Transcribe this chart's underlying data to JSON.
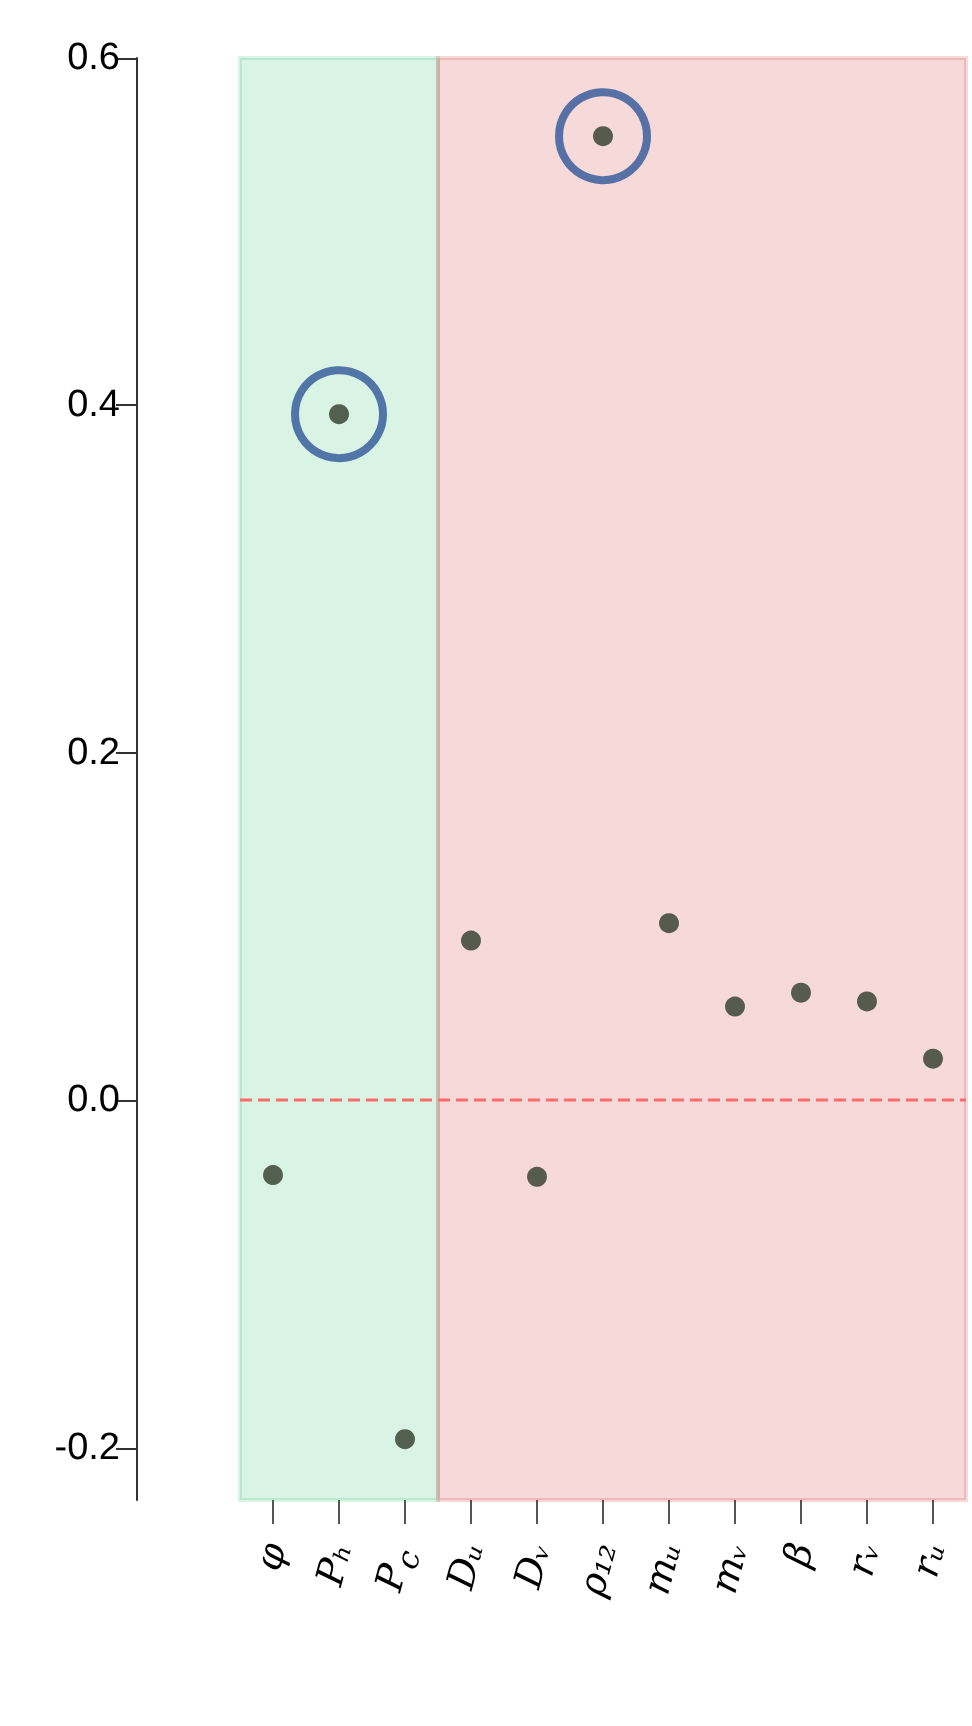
{
  "chart_data": {
    "type": "scatter",
    "categories": [
      "φ",
      "Pₕ",
      "P$_{c}$",
      "Dᵤ",
      "Dᵥ",
      "ρ₁₂",
      "mᵤ",
      "mᵥ",
      "β",
      "rᵥ",
      "rᵤ"
    ],
    "series": [
      {
        "color": "#2f3b2a",
        "marker": "circle",
        "values": [
          -0.043,
          0.395,
          -0.195,
          0.092,
          -0.044,
          0.555,
          0.102,
          0.054,
          0.062,
          0.057,
          0.024
        ]
      },
      {
        "color": "#2f5597",
        "marker": "circle",
        "values": [
          null,
          0.395,
          null,
          null,
          null,
          0.555,
          null,
          null,
          null,
          null,
          null
        ]
      }
    ],
    "ylim": [
      -0.23,
      0.6
    ],
    "yticks": [
      -0.2,
      {
        "value": 0,
        "label": "0.0"
      },
      0.2,
      0.4,
      0.6
    ],
    "grid": false,
    "ref_lines": [
      {
        "axis": "y",
        "value": 0,
        "color": "#ff6b6b",
        "line_style": "dashed"
      }
    ],
    "bands": [
      {
        "axis": "x",
        "from": "φ",
        "to": "P$_{c}$",
        "color": "#00b050"
      },
      {
        "axis": "x",
        "from": "Dᵤ",
        "to": "rᵤ",
        "color": "#c00000"
      }
    ]
  }
}
